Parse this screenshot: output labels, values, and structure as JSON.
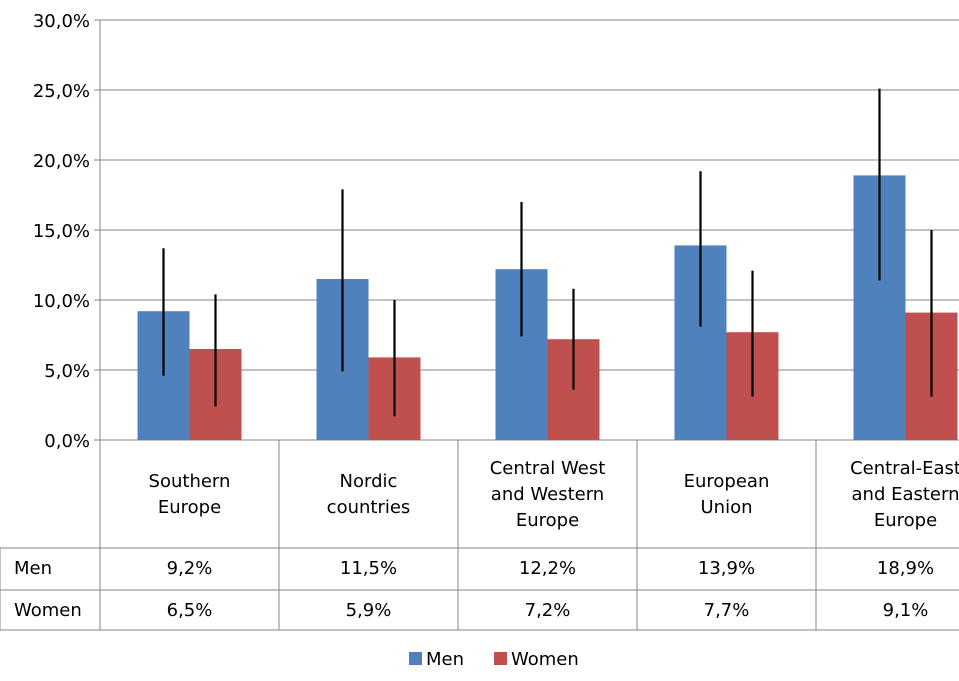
{
  "chart_data": {
    "type": "bar",
    "categories": [
      [
        "Southern",
        "Europe"
      ],
      [
        "Nordic",
        "countries"
      ],
      [
        "Central West",
        "and Western",
        "Europe"
      ],
      [
        "European",
        "Union"
      ],
      [
        "Central-East",
        "and Eastern",
        "Europe"
      ]
    ],
    "series": [
      {
        "name": "Men",
        "values": [
          9.2,
          11.5,
          12.2,
          13.9,
          18.9
        ],
        "error_low": [
          4.6,
          4.9,
          7.4,
          8.1,
          11.4
        ],
        "error_high": [
          13.7,
          17.9,
          17.0,
          19.2,
          25.1
        ],
        "labels": [
          "9,2%",
          "11,5%",
          "12,2%",
          "13,9%",
          "18,9%"
        ],
        "color": "#4f81bd"
      },
      {
        "name": "Women",
        "values": [
          6.5,
          5.9,
          7.2,
          7.7,
          9.1
        ],
        "error_low": [
          2.4,
          1.7,
          3.6,
          3.1,
          3.1
        ],
        "error_high": [
          10.4,
          10.0,
          10.8,
          12.1,
          15.0
        ],
        "labels": [
          "6,5%",
          "5,9%",
          "7,2%",
          "7,7%",
          "9,1%"
        ],
        "color": "#c0504d"
      }
    ],
    "ylim": [
      0,
      30
    ],
    "yticks": [
      "0,0%",
      "5,0%",
      "10,0%",
      "15,0%",
      "20,0%",
      "25,0%",
      "30,0%"
    ],
    "grid": true,
    "legend": [
      "Men",
      "Women"
    ],
    "legend_position": "bottom",
    "data_table": true
  }
}
